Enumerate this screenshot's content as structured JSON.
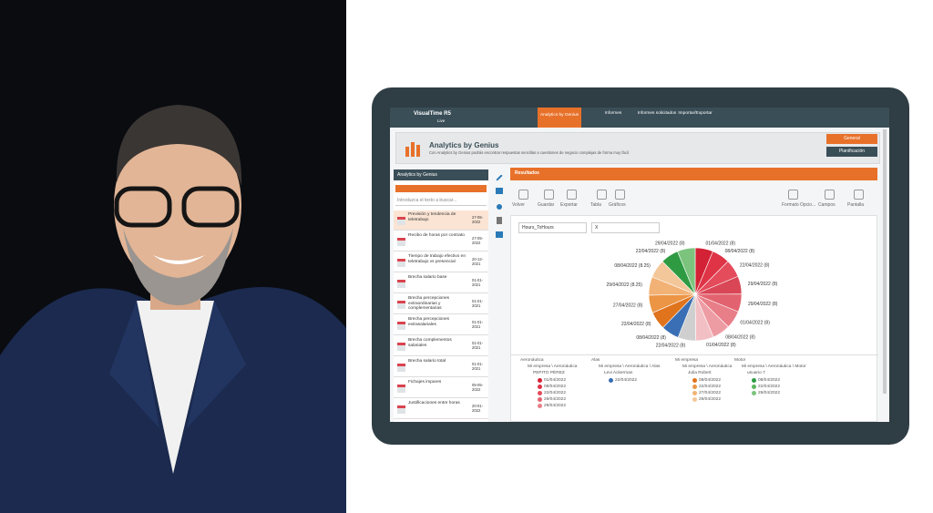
{
  "header": {
    "brand": "VisualTime R5",
    "brand_sub": "Live",
    "nav": [
      "Analytics by Genius",
      "Informes",
      "Informes solicitados",
      "Importar/Exportar"
    ]
  },
  "banner": {
    "title": "Analytics by Genius",
    "subtitle": "Con Analytics by Genius podrás encontrar respuestas sencillas a cuestiones de negocio complejas de forma muy fácil.",
    "buttons": [
      "General",
      "Planificación"
    ]
  },
  "sidebar": {
    "title": "Analytics by Genius",
    "search_placeholder": "Introduzca el texto a buscar...",
    "items": [
      {
        "label": "Previsión y tendencia de teletrabajo",
        "date": "27-05-2022"
      },
      {
        "label": "Recibo de horas por contrato",
        "date": "27-05-2022"
      },
      {
        "label": "Tiempo de trabajo efectivo en teletrabajo vs presencial",
        "date": "20-12-2021"
      },
      {
        "label": "Brecha salario base",
        "date": "01-01-2021"
      },
      {
        "label": "Brecha percepciones extraordinarias y complementarias",
        "date": "01-01-2021"
      },
      {
        "label": "Brecha percepciones extrasalariales",
        "date": "01-01-2021"
      },
      {
        "label": "Brecha complementos salariales",
        "date": "01-01-2021"
      },
      {
        "label": "Brecha salario total",
        "date": "01-01-2021"
      },
      {
        "label": "Fichajes impares",
        "date": "05-05-2022"
      },
      {
        "label": "Justificaciones entre horas",
        "date": "20-01-2022"
      }
    ]
  },
  "results": {
    "title": "Resultados",
    "toolbar": [
      "Volver",
      "Guardar",
      "Exportar",
      "Tabla",
      "Gráficos",
      "Formato Opcio...",
      "Campos",
      "Pantalla"
    ],
    "filters": [
      "Hours_ToHours",
      "X"
    ]
  },
  "pie": {
    "slices": [
      {
        "label": "01/04/2022 (8)",
        "value": 8,
        "color": "#d32235"
      },
      {
        "label": "08/04/2022 (8)",
        "value": 8,
        "color": "#de3446"
      },
      {
        "label": "22/04/2022 (8)",
        "value": 8,
        "color": "#e44b5b"
      },
      {
        "label": "29/04/2022 (8)",
        "value": 8,
        "color": "#d94656"
      },
      {
        "label": "29/04/2022 (8)",
        "value": 8,
        "color": "#e2636f"
      },
      {
        "label": "01/04/2022 (8)",
        "value": 8,
        "color": "#e87e88"
      },
      {
        "label": "08/04/2022 (8)",
        "value": 8,
        "color": "#ee9ca4"
      },
      {
        "label": "01/04/2022 (8)",
        "value": 8,
        "color": "#f2c0c4"
      },
      {
        "label": "22/04/2022 (8)",
        "value": 8,
        "color": "#cfcfcf"
      },
      {
        "label": "08/04/2022 (8)",
        "value": 8,
        "color": "#3a6fb5"
      },
      {
        "label": "22/04/2022 (8)",
        "value": 8,
        "color": "#e0741c"
      },
      {
        "label": "27/04/2022 (8)",
        "value": 8,
        "color": "#eb9545"
      },
      {
        "label": "29/04/2022 (8.25)",
        "value": 8.25,
        "color": "#f2b275"
      },
      {
        "label": "08/04/2022 (8.25)",
        "value": 8.25,
        "color": "#f3c79a"
      },
      {
        "label": "22/04/2022 (8)",
        "value": 8,
        "color": "#2e9b43"
      },
      {
        "label": "29/04/2022 (8)",
        "value": 8,
        "color": "#7cc47d"
      }
    ]
  },
  "legend": {
    "groups": [
      {
        "title": "Aeronáutica",
        "path": "Mi empresa \\ Aeronáutica",
        "person": "PEPITO PÉREZ",
        "entries": [
          {
            "label": "01/04/2022",
            "color": "#d32235"
          },
          {
            "label": "08/04/2022",
            "color": "#de3446"
          },
          {
            "label": "22/04/2022",
            "color": "#e44b5b"
          },
          {
            "label": "29/04/2022",
            "color": "#e2636f"
          },
          {
            "label": "29/04/2022",
            "color": "#e87e88"
          }
        ]
      },
      {
        "title": "Alas",
        "path": "Mi empresa \\ Aeronáutica \\ Alas",
        "person": "Levi Ackerman",
        "entries": [
          {
            "label": "22/04/2022",
            "color": "#3a6fb5"
          }
        ]
      },
      {
        "title": "Mi empresa",
        "path": "Mi empresa \\ Aeronáutica",
        "person": "Julia Robert",
        "entries": [
          {
            "label": "08/04/2022",
            "color": "#e0741c"
          },
          {
            "label": "22/04/2022",
            "color": "#eb9545"
          },
          {
            "label": "27/04/2022",
            "color": "#f2b275"
          },
          {
            "label": "29/04/2022",
            "color": "#f3c79a"
          }
        ]
      },
      {
        "title": "Motor",
        "path": "Mi empresa \\ Aeronáutica \\ Motor",
        "person": "usuario 7",
        "entries": [
          {
            "label": "08/04/2022",
            "color": "#2e9b43"
          },
          {
            "label": "22/04/2022",
            "color": "#5db65f"
          },
          {
            "label": "29/04/2022",
            "color": "#7cc47d"
          }
        ]
      }
    ]
  }
}
